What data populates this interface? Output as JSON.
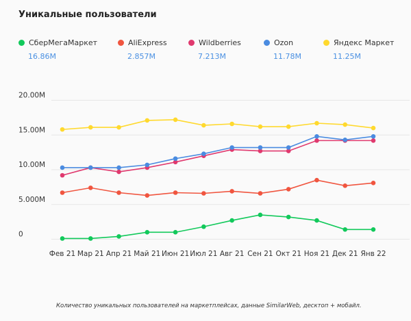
{
  "chart_data": {
    "type": "line",
    "title": "Уникальные пользователи",
    "categories": [
      "Фев 21",
      "Мар 21",
      "Апр 21",
      "Май 21",
      "Июн 21",
      "Июл 21",
      "Авг 21",
      "Сен 21",
      "Окт 21",
      "Ноя 21",
      "Дек 21",
      "Янв 22"
    ],
    "y_ticks": [
      "0",
      "5.000M",
      "10.00M",
      "15.00M",
      "20.00M"
    ],
    "ylim": [
      0,
      20
    ],
    "y_unit": "M",
    "grid": true,
    "legend_placement": "top",
    "series": [
      {
        "name": "СберМегаМаркет",
        "legend_value": "16.86M",
        "color": "#12c95b",
        "values": [
          0.1,
          0.1,
          0.4,
          1.0,
          1.0,
          1.8,
          2.7,
          3.5,
          3.2,
          2.7,
          1.4,
          1.4
        ]
      },
      {
        "name": "AliExpress",
        "legend_value": "2.857M",
        "color": "#f0553f",
        "values": [
          6.7,
          7.4,
          6.7,
          6.3,
          6.7,
          6.6,
          6.9,
          6.6,
          7.2,
          8.5,
          7.7,
          8.1
        ]
      },
      {
        "name": "Wildberries",
        "legend_value": "7.213M",
        "color": "#e0396e",
        "values": [
          9.2,
          10.3,
          9.7,
          10.3,
          11.1,
          12.0,
          12.9,
          12.7,
          12.7,
          14.2,
          14.2,
          14.2
        ]
      },
      {
        "name": "Ozon",
        "legend_value": "11.78M",
        "color": "#4a8be0",
        "values": [
          10.3,
          10.3,
          10.3,
          10.7,
          11.6,
          12.3,
          13.2,
          13.2,
          13.2,
          14.8,
          14.3,
          14.8
        ]
      },
      {
        "name": "Яндекс Маркет",
        "legend_value": "11.25M",
        "color": "#ffd92e",
        "values": [
          15.8,
          16.1,
          16.1,
          17.1,
          17.2,
          16.4,
          16.6,
          16.2,
          16.2,
          16.7,
          16.5,
          16.0
        ]
      }
    ],
    "footnote": "Количество уникальных пользователей на маркетплейсах, данные SimilarWeb, десктоп + мобайл."
  }
}
